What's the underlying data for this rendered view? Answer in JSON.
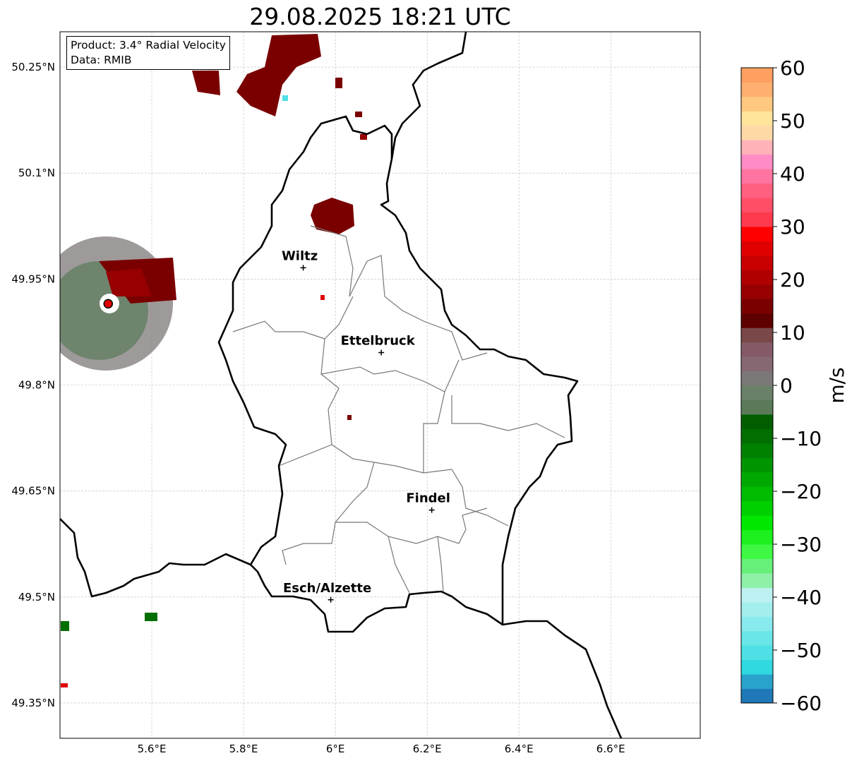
{
  "title": "29.08.2025 18:21 UTC",
  "info_box": {
    "product": "Product: 3.4° Radial Velocity",
    "data": "Data: RMIB"
  },
  "map": {
    "lon_range": [
      5.4,
      6.795
    ],
    "lat_range": [
      49.3,
      50.3
    ],
    "lon_ticks": [
      {
        "v": 5.6,
        "label": "5.6°E"
      },
      {
        "v": 5.8,
        "label": "5.8°E"
      },
      {
        "v": 6.0,
        "label": "6°E"
      },
      {
        "v": 6.2,
        "label": "6.2°E"
      },
      {
        "v": 6.4,
        "label": "6.4°E"
      },
      {
        "v": 6.6,
        "label": "6.6°E"
      }
    ],
    "lat_ticks": [
      {
        "v": 50.25,
        "label": "50.25°N"
      },
      {
        "v": 50.1,
        "label": "50.1°N"
      },
      {
        "v": 49.95,
        "label": "49.95°N"
      },
      {
        "v": 49.8,
        "label": "49.8°N"
      },
      {
        "v": 49.65,
        "label": "49.65°N"
      },
      {
        "v": 49.5,
        "label": "49.5°N"
      },
      {
        "v": 49.35,
        "label": "49.35°N"
      }
    ],
    "radar_site": {
      "lon": 5.505,
      "lat": 49.915
    },
    "cities": [
      {
        "name": "Wiltz",
        "lon": 5.93,
        "lat": 49.966
      },
      {
        "name": "Ettelbruck",
        "lon": 6.1,
        "lat": 49.846
      },
      {
        "name": "Findel",
        "lon": 6.21,
        "lat": 49.623
      },
      {
        "name": "Esch/Alzette",
        "lon": 5.99,
        "lat": 49.496
      }
    ]
  },
  "colorbar": {
    "label": "m/s",
    "range": [
      -60,
      60
    ],
    "ticks": [
      {
        "v": 60,
        "label": "60"
      },
      {
        "v": 50,
        "label": "50"
      },
      {
        "v": 40,
        "label": "40"
      },
      {
        "v": 30,
        "label": "30"
      },
      {
        "v": 20,
        "label": "20"
      },
      {
        "v": 10,
        "label": "10"
      },
      {
        "v": 0,
        "label": "0"
      },
      {
        "v": -10,
        "label": "−10"
      },
      {
        "v": -20,
        "label": "−20"
      },
      {
        "v": -30,
        "label": "−30"
      },
      {
        "v": -40,
        "label": "−40"
      },
      {
        "v": -50,
        "label": "−50"
      },
      {
        "v": -60,
        "label": "−60"
      }
    ],
    "colors": [
      "#1f78b8",
      "#2aa3cc",
      "#30d8e0",
      "#4ee0e4",
      "#6ae6e8",
      "#88eaec",
      "#a4eeee",
      "#bdf1f1",
      "#8ff0a8",
      "#66f07a",
      "#3ef844",
      "#1ef020",
      "#00e800",
      "#00d000",
      "#00bc00",
      "#00a800",
      "#009400",
      "#008000",
      "#006e00",
      "#005e00",
      "#5a7a5a",
      "#6a8068",
      "#7d7878",
      "#866873",
      "#835a66",
      "#7a4848",
      "#5e0000",
      "#7a0000",
      "#960000",
      "#b00000",
      "#c80000",
      "#e00000",
      "#ff0000",
      "#ff3a4e",
      "#ff4e66",
      "#ff6080",
      "#ff74a0",
      "#ff8cc4",
      "#ffb2b8",
      "#ffd8a8",
      "#ffe49c",
      "#ffc880",
      "#ffb070",
      "#ffa060"
    ]
  }
}
